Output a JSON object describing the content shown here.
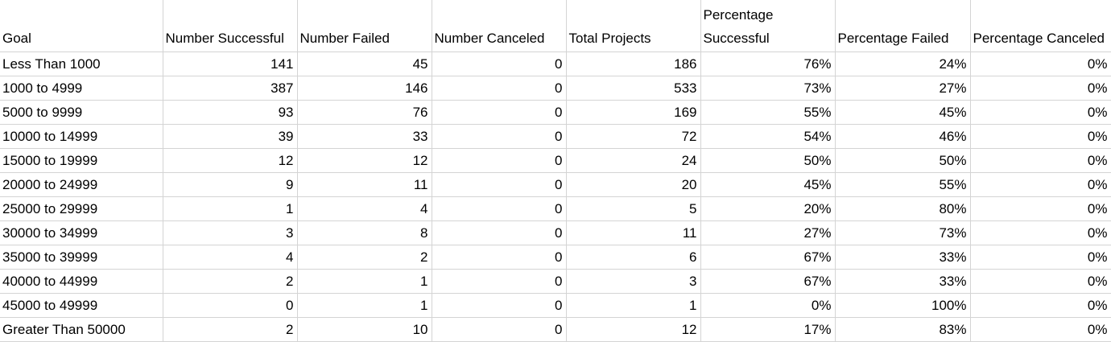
{
  "columns": [
    "Goal",
    "Number Successful",
    "Number Failed",
    "Number Canceled",
    "Total Projects",
    "Percentage Successful",
    "Percentage Failed",
    "Percentage Canceled"
  ],
  "rows": [
    [
      "Less Than 1000",
      "141",
      "45",
      "0",
      "186",
      "76%",
      "24%",
      "0%"
    ],
    [
      "1000 to 4999",
      "387",
      "146",
      "0",
      "533",
      "73%",
      "27%",
      "0%"
    ],
    [
      "5000 to 9999",
      "93",
      "76",
      "0",
      "169",
      "55%",
      "45%",
      "0%"
    ],
    [
      "10000 to 14999",
      "39",
      "33",
      "0",
      "72",
      "54%",
      "46%",
      "0%"
    ],
    [
      "15000 to 19999",
      "12",
      "12",
      "0",
      "24",
      "50%",
      "50%",
      "0%"
    ],
    [
      "20000 to 24999",
      "9",
      "11",
      "0",
      "20",
      "45%",
      "55%",
      "0%"
    ],
    [
      "25000 to 29999",
      "1",
      "4",
      "0",
      "5",
      "20%",
      "80%",
      "0%"
    ],
    [
      "30000 to 34999",
      "3",
      "8",
      "0",
      "11",
      "27%",
      "73%",
      "0%"
    ],
    [
      "35000 to 39999",
      "4",
      "2",
      "0",
      "6",
      "67%",
      "33%",
      "0%"
    ],
    [
      "40000 to 44999",
      "2",
      "1",
      "0",
      "3",
      "67%",
      "33%",
      "0%"
    ],
    [
      "45000 to 49999",
      "0",
      "1",
      "0",
      "1",
      "0%",
      "100%",
      "0%"
    ],
    [
      "Greater Than 50000",
      "2",
      "10",
      "0",
      "12",
      "17%",
      "83%",
      "0%"
    ]
  ]
}
